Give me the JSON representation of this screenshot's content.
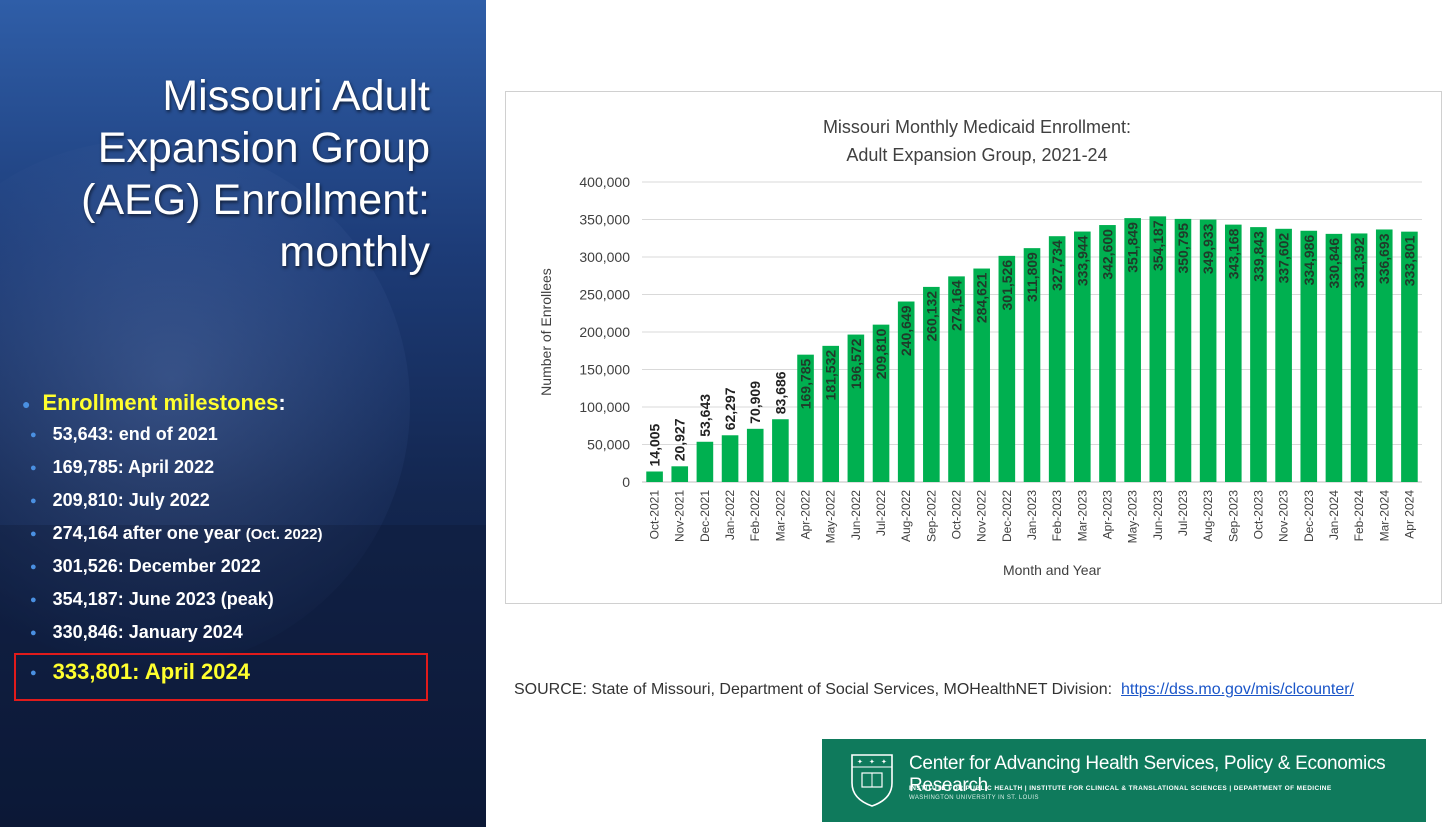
{
  "slide": {
    "title_lines": [
      "Missouri Adult",
      "Expansion Group",
      "(AEG) Enrollment:",
      "monthly"
    ],
    "milestones_heading": "Enrollment milestones",
    "milestones_colon": ":",
    "milestones": [
      {
        "text": "53,643: end of 2021",
        "note": ""
      },
      {
        "text": "169,785: April 2022",
        "note": ""
      },
      {
        "text": "209,810: July 2022",
        "note": ""
      },
      {
        "text": "274,164 after one year",
        "note": "(Oct. 2022)"
      },
      {
        "text": "301,526: December 2022",
        "note": ""
      },
      {
        "text": "354,187: June 2023 (peak)",
        "note": ""
      },
      {
        "text": "330,846: January 2024",
        "note": ""
      }
    ],
    "highlight_milestone": "333,801: April 2024",
    "source_text": "SOURCE: State of Missouri, Department of Social Services, MOHealthNET Division:",
    "source_link": "https://dss.mo.gov/mis/clcounter/",
    "logo": {
      "name": "Center for Advancing Health Services, Policy & Economics Research",
      "sub1": "INSTITUTE FOR PUBLIC HEALTH | INSTITUTE FOR CLINICAL & TRANSLATIONAL SCIENCES | DEPARTMENT OF MEDICINE",
      "sub2": "WASHINGTON UNIVERSITY IN ST. LOUIS"
    }
  },
  "colors": {
    "bar": "#00b050",
    "highlight_text": "#ffff2e",
    "highlight_border": "#e01b1b",
    "logo_bg": "#0f7a5c"
  },
  "chart_data": {
    "type": "bar",
    "title": "Missouri Monthly Medicaid Enrollment:",
    "subtitle": "Adult Expansion Group, 2021-24",
    "xlabel": "Month and Year",
    "ylabel": "Number of Enrollees",
    "ylim": [
      0,
      400000
    ],
    "yticks": [
      0,
      50000,
      100000,
      150000,
      200000,
      250000,
      300000,
      350000,
      400000
    ],
    "ytick_labels": [
      "0",
      "50,000",
      "100,000",
      "150,000",
      "200,000",
      "250,000",
      "300,000",
      "350,000",
      "400,000"
    ],
    "grid": true,
    "categories": [
      "Oct-2021",
      "Nov-2021",
      "Dec-2021",
      "Jan-2022",
      "Feb-2022",
      "Mar-2022",
      "Apr-2022",
      "May-2022",
      "Jun-2022",
      "Jul-2022",
      "Aug-2022",
      "Sep-2022",
      "Oct-2022",
      "Nov-2022",
      "Dec-2022",
      "Jan-2023",
      "Feb-2023",
      "Mar-2023",
      "Apr-2023",
      "May-2023",
      "Jun-2023",
      "Jul-2023",
      "Aug-2023",
      "Sep-2023",
      "Oct-2023",
      "Nov-2023",
      "Dec-2023",
      "Jan-2024",
      "Feb-2024",
      "Mar-2024",
      "Apr 2024"
    ],
    "values": [
      14005,
      20927,
      53643,
      62297,
      70909,
      83686,
      169785,
      181532,
      196572,
      209810,
      240649,
      260132,
      274164,
      284621,
      301526,
      311809,
      327734,
      333944,
      342600,
      351849,
      354187,
      350795,
      349933,
      343168,
      339843,
      337602,
      334986,
      330846,
      331392,
      336693,
      333801
    ],
    "data_labels": [
      "14,005",
      "20,927",
      "53,643",
      "62,297",
      "70,909",
      "83,686",
      "169,785",
      "181,532",
      "196,572",
      "209,810",
      "240,649",
      "260,132",
      "274,164",
      "284,621",
      "301,526",
      "311,809",
      "327,734",
      "333,944",
      "342,600",
      "351,849",
      "354,187",
      "350,795",
      "349,933",
      "343,168",
      "339,843",
      "337,602",
      "334,986",
      "330,846",
      "331,392",
      "336,693",
      "333,801"
    ]
  }
}
